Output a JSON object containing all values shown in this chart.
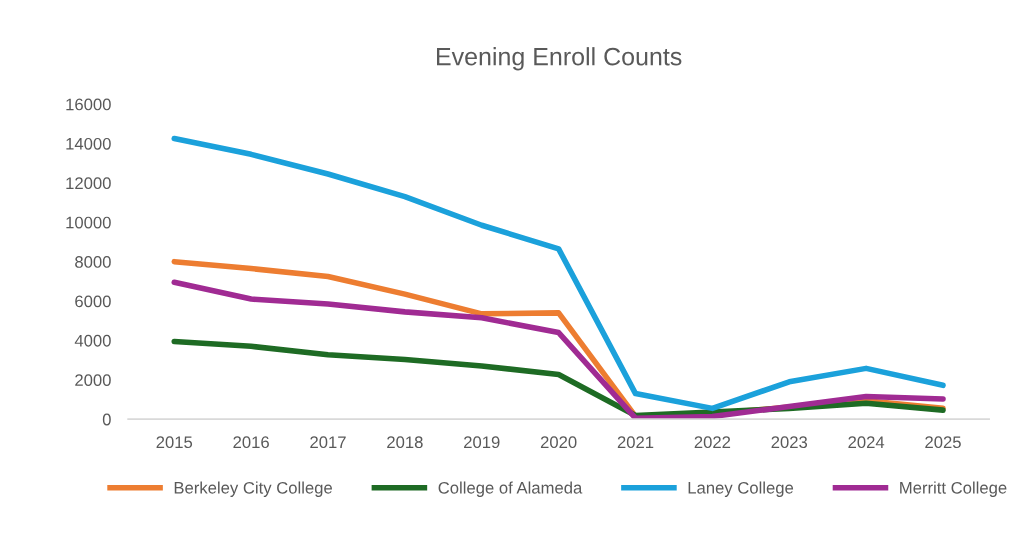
{
  "chart_data": {
    "type": "line",
    "title": "Evening Enroll Counts",
    "categories": [
      "2015",
      "2016",
      "2017",
      "2018",
      "2019",
      "2020",
      "2021",
      "2022",
      "2023",
      "2024",
      "2025"
    ],
    "series": [
      {
        "name": "Berkeley City College",
        "color": "#ed7d31",
        "values": [
          8000,
          7650,
          7250,
          6350,
          5350,
          5400,
          140,
          270,
          620,
          940,
          550
        ]
      },
      {
        "name": "College of Alameda",
        "color": "#1e6b24",
        "values": [
          3950,
          3700,
          3270,
          3030,
          2700,
          2270,
          190,
          370,
          550,
          810,
          460
        ]
      },
      {
        "name": "Laney College",
        "color": "#1ba1db",
        "values": [
          14250,
          13450,
          12450,
          11300,
          9850,
          8650,
          1300,
          550,
          1900,
          2580,
          1720
        ]
      },
      {
        "name": "Merritt College",
        "color": "#a02b93",
        "values": [
          6950,
          6100,
          5850,
          5450,
          5150,
          4400,
          50,
          140,
          640,
          1150,
          1030
        ]
      }
    ],
    "ylim": [
      0,
      16000
    ],
    "yticks": [
      0,
      2000,
      4000,
      6000,
      8000,
      10000,
      12000,
      14000,
      16000
    ],
    "grid": false,
    "legend": "bottom",
    "marker": "none",
    "line_style": "solid"
  }
}
